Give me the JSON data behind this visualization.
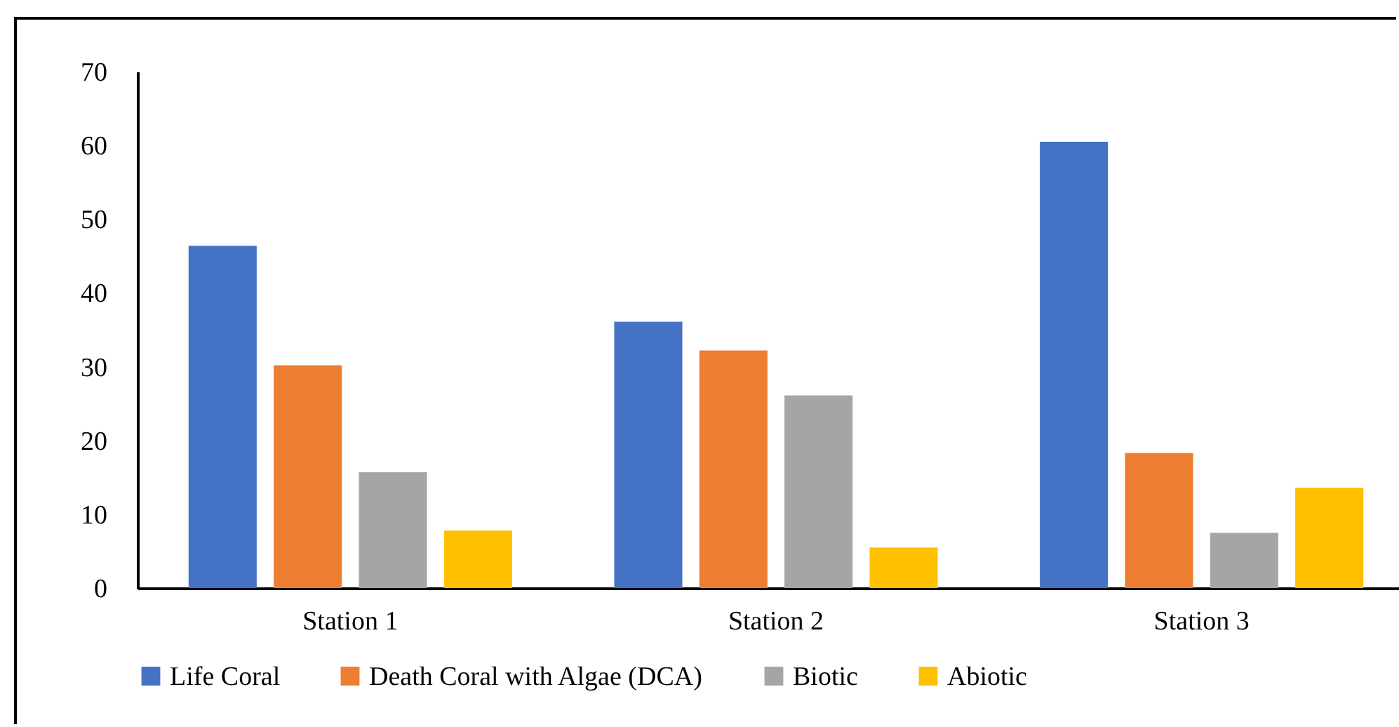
{
  "chart_data": {
    "type": "bar",
    "categories": [
      "Station 1",
      "Station 2",
      "Station 3"
    ],
    "series": [
      {
        "name": "Life Coral",
        "color": "#4472c4",
        "values": [
          46.4,
          36.1,
          60.5
        ]
      },
      {
        "name": "Death Coral with Algae (DCA)",
        "color": "#ed7d31",
        "values": [
          30.2,
          32.2,
          18.3
        ]
      },
      {
        "name": "Biotic",
        "color": "#a5a5a5",
        "values": [
          15.7,
          26.1,
          7.5
        ]
      },
      {
        "name": "Abiotic",
        "color": "#ffc000",
        "values": [
          7.8,
          5.5,
          13.6
        ]
      }
    ],
    "ylim": [
      0,
      70
    ],
    "yticks": [
      0,
      10,
      20,
      30,
      40,
      50,
      60,
      70
    ],
    "grid": false,
    "legend": "bottom"
  }
}
